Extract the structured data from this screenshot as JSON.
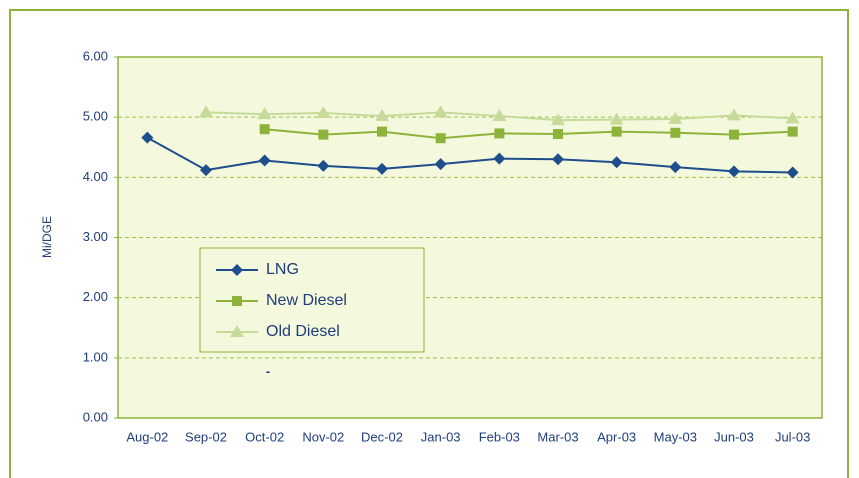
{
  "chart_data": {
    "type": "line",
    "y_label": "Mi/DGE",
    "annotation": "-",
    "categories": [
      "Aug-02",
      "Sep-02",
      "Oct-02",
      "Nov-02",
      "Dec-02",
      "Jan-03",
      "Feb-03",
      "Mar-03",
      "Apr-03",
      "May-03",
      "Jun-03",
      "Jul-03"
    ],
    "series": [
      {
        "name": "LNG",
        "color": "#1f4e8c",
        "marker": "diamond",
        "values": [
          4.66,
          4.12,
          4.28,
          4.19,
          4.14,
          4.22,
          4.31,
          4.3,
          4.25,
          4.17,
          4.1,
          4.08
        ]
      },
      {
        "name": "New Diesel",
        "color": "#8db33a",
        "marker": "square",
        "values": [
          null,
          null,
          4.8,
          4.71,
          4.76,
          4.65,
          4.73,
          4.72,
          4.76,
          4.74,
          4.71,
          4.76
        ]
      },
      {
        "name": "Old Diesel",
        "color": "#c6db9a",
        "marker": "triangle",
        "values": [
          null,
          5.08,
          5.05,
          5.07,
          5.02,
          5.08,
          5.02,
          4.95,
          4.96,
          4.97,
          5.03,
          4.98
        ]
      }
    ],
    "ylim": [
      0,
      6
    ],
    "yticks": [
      {
        "value": 0,
        "label": "0.00"
      },
      {
        "value": 1,
        "label": "1.00"
      },
      {
        "value": 2,
        "label": "2.00"
      },
      {
        "value": 3,
        "label": "3.00"
      },
      {
        "value": 4,
        "label": "4.00"
      },
      {
        "value": 5,
        "label": "5.00"
      },
      {
        "value": 6,
        "label": "6.00"
      }
    ],
    "grid": true
  }
}
